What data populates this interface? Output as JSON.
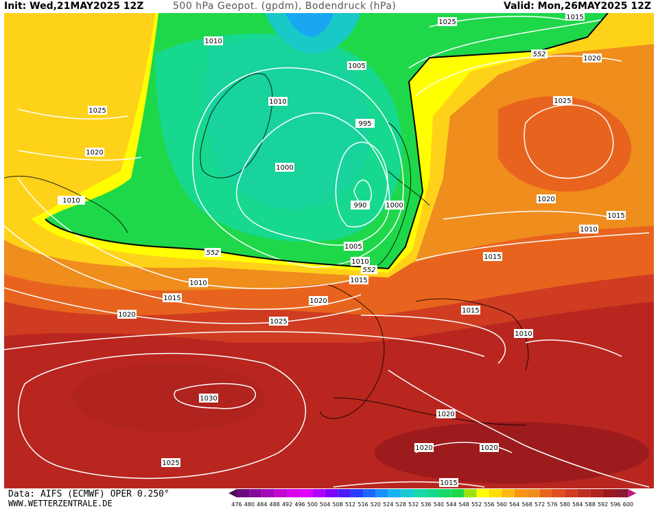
{
  "header": {
    "init": "Init: Wed,21MAY2025 12Z",
    "title": "500 hPa Geopot. (gpdm), Bodendruck (hPa)",
    "valid": "Valid: Mon,26MAY2025 12Z"
  },
  "footer": {
    "source": "Data: AIFS (ECMWF) OPER 0.250°",
    "site": "WWW.WETTERZENTRALE.DE"
  },
  "colors": {
    "warm_red": "#b0231f",
    "red": "#cf3c21",
    "orange": "#e8641e",
    "light_orange": "#ef8d1d",
    "yellow": "#ffff00",
    "yellow_green": "#caea0b",
    "green": "#1ed84a",
    "teal": "#16d88e",
    "cyan": "#18c9c8",
    "blue": "#1aa7f2",
    "isobar": "#ffffff",
    "contour_552": "#000000"
  },
  "isobar_labels": [
    "1010",
    "1025",
    "1005",
    "1010",
    "995",
    "1000",
    "990",
    "1000",
    "1005",
    "1010",
    "1015",
    "1020",
    "1025",
    "1030",
    "1025",
    "1020",
    "1015",
    "1010",
    "552",
    "552",
    "552",
    "1025",
    "1020",
    "1015",
    "1025",
    "1020",
    "1010",
    "1015",
    "1015",
    "1010",
    "1020",
    "1020",
    "1015",
    "1015",
    "1020",
    "1010",
    "1020"
  ],
  "contour_label": "552",
  "colorbar": {
    "ticks": [
      "476",
      "480",
      "484",
      "488",
      "492",
      "496",
      "500",
      "504",
      "508",
      "512",
      "516",
      "520",
      "524",
      "528",
      "532",
      "536",
      "540",
      "544",
      "548",
      "552",
      "556",
      "560",
      "564",
      "568",
      "572",
      "576",
      "580",
      "584",
      "588",
      "592",
      "596",
      "600"
    ],
    "colors": [
      "#4b0f4f",
      "#6a0d7e",
      "#860a9c",
      "#a308b8",
      "#c306d2",
      "#d902e8",
      "#e000ff",
      "#b100ff",
      "#7e00ff",
      "#4b1aff",
      "#2a3cff",
      "#1a66ff",
      "#1a8fff",
      "#19b2f0",
      "#17c9d2",
      "#16d8a8",
      "#16d88e",
      "#18d868",
      "#1ed84a",
      "#9ee00f",
      "#ffff00",
      "#ffdd00",
      "#ffb90e",
      "#f99414",
      "#ef8d1d",
      "#e8641e",
      "#de4e1f",
      "#cf3c21",
      "#c02f21",
      "#b0231f",
      "#9d1a1d",
      "#8a1a2e",
      "#c21c7c"
    ]
  }
}
